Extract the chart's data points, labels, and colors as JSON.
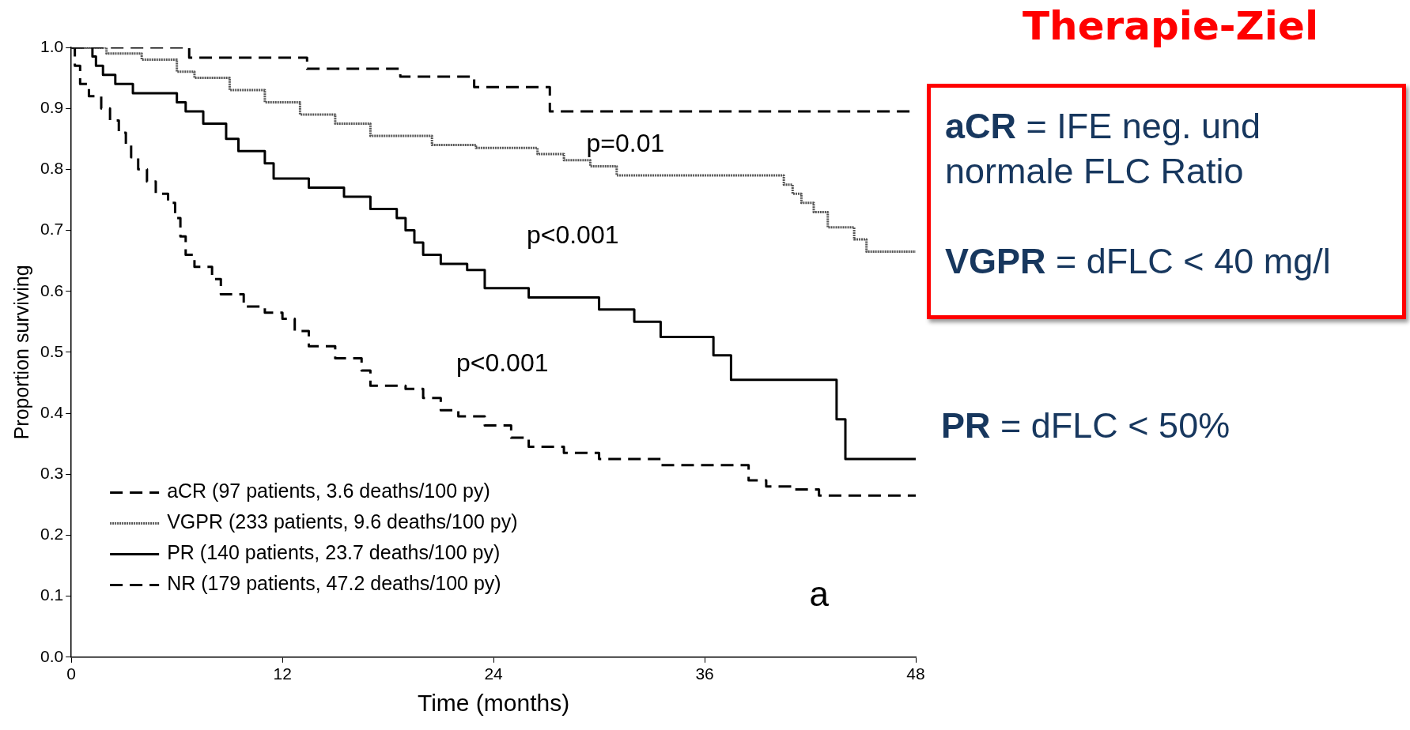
{
  "chart_data": {
    "type": "step",
    "title": "Therapie-Ziel",
    "xlabel": "Time (months)",
    "ylabel": "Proportion surviving",
    "xlim": [
      0,
      48
    ],
    "xticks": [
      0,
      12,
      24,
      36,
      48
    ],
    "ylim": [
      0,
      1
    ],
    "yticks": [
      {
        "value": 0,
        "label": "0.0"
      },
      {
        "value": 0.1,
        "label": "0.1"
      },
      {
        "value": 0.2,
        "label": "0.2"
      },
      {
        "value": 0.3,
        "label": "0.3"
      },
      {
        "value": 0.4,
        "label": "0.4"
      },
      {
        "value": 0.5,
        "label": "0.5"
      },
      {
        "value": 0.6,
        "label": "0.6"
      },
      {
        "value": 0.7,
        "label": "0.7"
      },
      {
        "value": 0.8,
        "label": "0.8"
      },
      {
        "value": 0.9,
        "label": "0.9"
      },
      {
        "value": 1,
        "label": "1.0"
      }
    ],
    "grid": false,
    "legend": "bottom left",
    "marker": "none",
    "series": [
      {
        "name": "aCR (97 patients, 3.6 deaths/100 py)",
        "color": "#000000",
        "line_style": "dashed",
        "x": [
          0,
          6.7,
          13.4,
          18.7,
          22.9,
          27.2,
          48
        ],
        "values": [
          1,
          0.983,
          0.965,
          0.952,
          0.935,
          0.895,
          0.895
        ]
      },
      {
        "name": "VGPR (233 patients, 9.6 deaths/100 py)",
        "color": "#555555",
        "line_style": "dotted",
        "x": [
          0,
          2,
          4,
          6,
          7,
          9,
          11,
          13,
          15,
          17,
          20.5,
          23,
          26.5,
          28,
          29.5,
          31,
          39.5,
          40.5,
          41,
          41.5,
          42.2,
          43,
          44.5,
          45.2,
          48
        ],
        "values": [
          1,
          0.99,
          0.98,
          0.96,
          0.95,
          0.93,
          0.91,
          0.89,
          0.875,
          0.855,
          0.84,
          0.835,
          0.825,
          0.815,
          0.805,
          0.79,
          0.79,
          0.775,
          0.76,
          0.745,
          0.73,
          0.705,
          0.685,
          0.665,
          0.665
        ]
      },
      {
        "name": "PR (140 patients, 23.7 deaths/100 py)",
        "color": "#000000",
        "line_style": "solid",
        "x": [
          0,
          1.2,
          1.4,
          1.8,
          2.5,
          3.5,
          6,
          6.5,
          7.5,
          8.8,
          9.5,
          11,
          11.5,
          13.5,
          15.5,
          17,
          18.5,
          19,
          19.5,
          20,
          21,
          22.5,
          23.5,
          26,
          30,
          32,
          33.5,
          36.5,
          37.5,
          43.5,
          44,
          48
        ],
        "values": [
          1,
          0.985,
          0.97,
          0.955,
          0.94,
          0.925,
          0.91,
          0.895,
          0.875,
          0.85,
          0.83,
          0.81,
          0.785,
          0.77,
          0.755,
          0.735,
          0.72,
          0.7,
          0.68,
          0.66,
          0.645,
          0.635,
          0.605,
          0.59,
          0.57,
          0.55,
          0.525,
          0.495,
          0.455,
          0.39,
          0.325,
          0.325
        ]
      },
      {
        "name": "NR (179 patients, 47.2 deaths/100 py)",
        "color": "#000000",
        "line_style": "dashed",
        "x": [
          0,
          0.2,
          0.5,
          1,
          1.7,
          2.2,
          2.7,
          3.1,
          3.4,
          3.8,
          4.3,
          4.8,
          5.5,
          5.9,
          6.2,
          6.5,
          7,
          8,
          8.5,
          9.8,
          11,
          12,
          12.7,
          13.5,
          15,
          16.5,
          17,
          19,
          20,
          21,
          22,
          23.5,
          25,
          26,
          28,
          30,
          33.5,
          38.5,
          39.5,
          41,
          42.5,
          48
        ],
        "values": [
          1,
          0.97,
          0.94,
          0.92,
          0.9,
          0.88,
          0.86,
          0.84,
          0.82,
          0.8,
          0.78,
          0.76,
          0.745,
          0.72,
          0.69,
          0.66,
          0.64,
          0.62,
          0.595,
          0.575,
          0.565,
          0.555,
          0.535,
          0.51,
          0.49,
          0.47,
          0.445,
          0.44,
          0.425,
          0.405,
          0.395,
          0.38,
          0.36,
          0.345,
          0.335,
          0.325,
          0.315,
          0.29,
          0.28,
          0.275,
          0.265,
          0.265
        ]
      }
    ],
    "annotations": [
      "p=0.01",
      "p<0.001",
      "p<0.001",
      "a",
      "aCR = IFE neg. und normale FLC Ratio",
      "VGPR = dFLC < 40 mg/l",
      "PR = dFLC < 50%"
    ]
  }
}
